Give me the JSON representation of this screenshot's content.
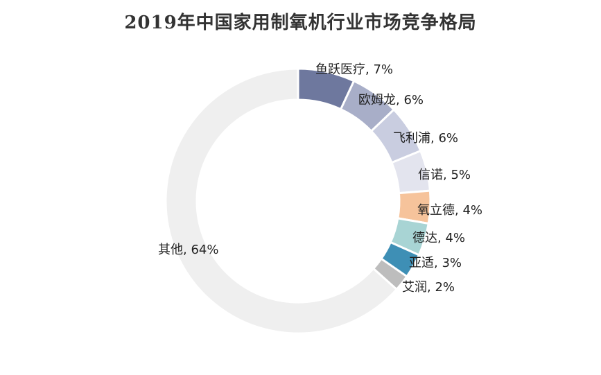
{
  "chart_data": {
    "type": "pie",
    "title": "2019年中国家用制氧机行业市场竞争格局",
    "slices": [
      {
        "label": "鱼跃医疗",
        "value": 7,
        "text": "鱼跃医疗, 7%",
        "color": "#6e789e"
      },
      {
        "label": "欧姆龙",
        "value": 6,
        "text": "欧姆龙, 6%",
        "color": "#a8aec8"
      },
      {
        "label": "飞利浦",
        "value": 6,
        "text": "飞利浦, 6%",
        "color": "#c9cde0"
      },
      {
        "label": "信诺",
        "value": 5,
        "text": "信诺, 5%",
        "color": "#e3e4ee"
      },
      {
        "label": "氧立德",
        "value": 4,
        "text": "氧立德, 4%",
        "color": "#f6c39b"
      },
      {
        "label": "德达",
        "value": 4,
        "text": "德达, 4%",
        "color": "#a8d4d4"
      },
      {
        "label": "亚适",
        "value": 3,
        "text": "亚适, 3%",
        "color": "#3e8fb5"
      },
      {
        "label": "艾润",
        "value": 2,
        "text": "艾润, 2%",
        "color": "#bdbdbd"
      },
      {
        "label": "其他",
        "value": 64,
        "text": "其他, 64%",
        "color": "#efefef"
      }
    ],
    "legend": "none",
    "donut": true
  }
}
